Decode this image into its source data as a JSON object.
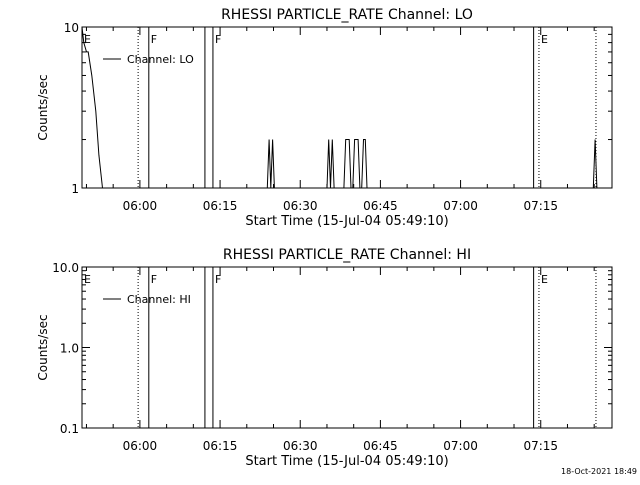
{
  "colors": {
    "background": "#ffffff",
    "foreground": "#000000"
  },
  "timestamp": "18-Oct-2021 18:49",
  "chart_data": [
    {
      "type": "line",
      "title": "RHESSI PARTICLE_RATE Channel: LO",
      "xlabel": "Start Time (15-Jul-04 05:49:10)",
      "ylabel": "Counts/sec",
      "yscale": "log",
      "ylim": [
        1,
        10
      ],
      "yticks": [
        {
          "value": 1,
          "label": "1"
        },
        {
          "value": 10,
          "label": "10"
        }
      ],
      "xlim": [
        "05:49:10",
        "07:28:20"
      ],
      "xticks": [
        "06:00",
        "06:15",
        "06:30",
        "06:45",
        "07:00",
        "07:15"
      ],
      "legend": {
        "label": "Channel: LO",
        "position": "top-left"
      },
      "series": [
        {
          "name": "Channel: LO",
          "points": [
            [
              "05:49:10",
              10
            ],
            [
              "05:49:30",
              8
            ],
            [
              "05:50:00",
              7
            ],
            [
              "05:50:20",
              7
            ],
            [
              "05:51:00",
              5
            ],
            [
              "05:51:45",
              3
            ],
            [
              "05:52:20",
              1.6
            ],
            [
              "05:53:00",
              1
            ],
            [
              "06:23:50",
              1
            ],
            [
              "06:24:10",
              2
            ],
            [
              "06:24:30",
              1
            ],
            [
              "06:24:50",
              2
            ],
            [
              "06:25:10",
              1
            ],
            [
              "06:35:00",
              1
            ],
            [
              "06:35:20",
              2
            ],
            [
              "06:35:40",
              1
            ],
            [
              "06:36:00",
              2
            ],
            [
              "06:36:20",
              1
            ],
            [
              "06:38:10",
              1
            ],
            [
              "06:38:30",
              2
            ],
            [
              "06:39:10",
              2
            ],
            [
              "06:39:30",
              1
            ],
            [
              "06:39:50",
              1
            ],
            [
              "06:40:10",
              2
            ],
            [
              "06:40:50",
              2
            ],
            [
              "06:41:10",
              1
            ],
            [
              "06:41:30",
              1
            ],
            [
              "06:41:50",
              2
            ],
            [
              "06:42:10",
              2
            ],
            [
              "06:42:30",
              1
            ],
            [
              "07:24:50",
              1
            ],
            [
              "07:25:10",
              2
            ],
            [
              "07:25:30",
              1
            ]
          ]
        }
      ],
      "markers": [
        {
          "time": "05:49:10",
          "style": "solid",
          "label": "E"
        },
        {
          "time": "06:01:40",
          "style": "solid",
          "label": "F"
        },
        {
          "time": "06:12:10",
          "style": "solid",
          "label": ""
        },
        {
          "time": "06:13:40",
          "style": "solid",
          "label": "F"
        },
        {
          "time": "07:13:40",
          "style": "solid",
          "label": ""
        },
        {
          "time": "07:14:40",
          "style": "dotted",
          "label": "E"
        },
        {
          "time": "05:59:40",
          "style": "dotted",
          "label": ""
        },
        {
          "time": "07:25:20",
          "style": "dotted",
          "label": ""
        }
      ]
    },
    {
      "type": "line",
      "title": "RHESSI PARTICLE_RATE Channel: HI",
      "xlabel": "Start Time (15-Jul-04 05:49:10)",
      "ylabel": "Counts/sec",
      "yscale": "log",
      "ylim": [
        0.1,
        10
      ],
      "yticks": [
        {
          "value": 0.1,
          "label": "0.1"
        },
        {
          "value": 1,
          "label": "1.0"
        },
        {
          "value": 10,
          "label": "10.0"
        }
      ],
      "xlim": [
        "05:49:10",
        "07:28:20"
      ],
      "xticks": [
        "06:00",
        "06:15",
        "06:30",
        "06:45",
        "07:00",
        "07:15"
      ],
      "legend": {
        "label": "Channel: HI",
        "position": "top-left"
      },
      "series": [
        {
          "name": "Channel: HI",
          "points": []
        }
      ],
      "markers": [
        {
          "time": "05:49:10",
          "style": "solid",
          "label": "E"
        },
        {
          "time": "06:01:40",
          "style": "solid",
          "label": "F"
        },
        {
          "time": "06:12:10",
          "style": "solid",
          "label": ""
        },
        {
          "time": "06:13:40",
          "style": "solid",
          "label": "F"
        },
        {
          "time": "07:13:40",
          "style": "solid",
          "label": ""
        },
        {
          "time": "07:14:40",
          "style": "dotted",
          "label": "E"
        },
        {
          "time": "05:59:40",
          "style": "dotted",
          "label": ""
        },
        {
          "time": "07:25:20",
          "style": "dotted",
          "label": ""
        }
      ]
    }
  ]
}
